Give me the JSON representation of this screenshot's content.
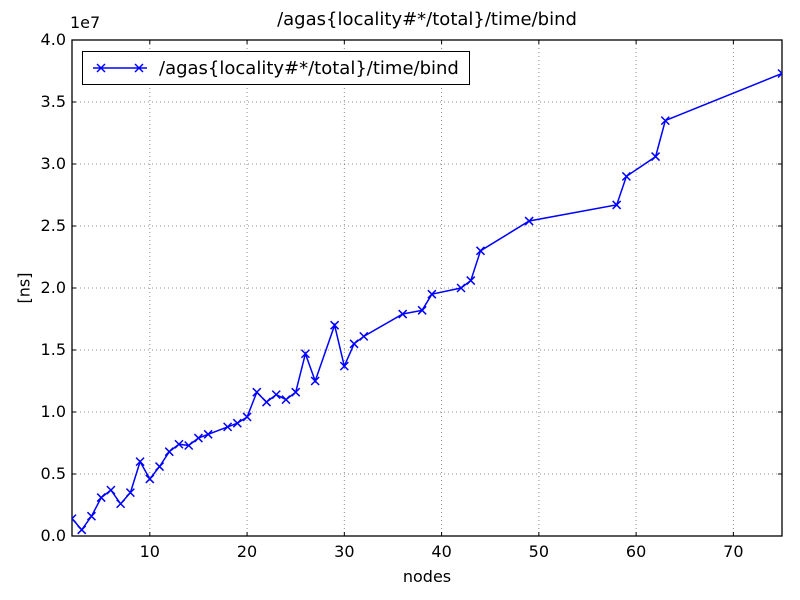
{
  "chart_data": {
    "type": "line",
    "title": "/agas{locality#*/total}/time/bind",
    "xlabel": "nodes",
    "ylabel": "[ns]",
    "y_offset_label": "1e7",
    "legend": [
      "/agas{locality#*/total}/time/bind"
    ],
    "legend_position": "upper left",
    "line_color": "#0000ff",
    "marker": "x",
    "grid": true,
    "grid_style": "dotted",
    "background": "#ffffff",
    "xlim": [
      2,
      75
    ],
    "ylim": [
      0,
      40000000
    ],
    "x_ticks": [
      10,
      20,
      30,
      40,
      50,
      60,
      70
    ],
    "y_tick_values": [
      0,
      5000000,
      10000000,
      15000000,
      20000000,
      25000000,
      30000000,
      35000000,
      40000000
    ],
    "y_tick_labels": [
      "0.0",
      "0.5",
      "1.0",
      "1.5",
      "2.0",
      "2.5",
      "3.0",
      "3.5",
      "4.0"
    ],
    "x": [
      2,
      3,
      4,
      5,
      6,
      7,
      8,
      9,
      10,
      11,
      12,
      13,
      14,
      15,
      16,
      18,
      19,
      20,
      21,
      22,
      23,
      24,
      25,
      26,
      27,
      29,
      30,
      31,
      32,
      36,
      38,
      39,
      42,
      43,
      44,
      49,
      58,
      59,
      62,
      63,
      75
    ],
    "y": [
      1400000,
      500000,
      1600000,
      3100000,
      3700000,
      2600000,
      3500000,
      6000000,
      4600000,
      5600000,
      6800000,
      7400000,
      7300000,
      7900000,
      8200000,
      8800000,
      9100000,
      9600000,
      11600000,
      10800000,
      11400000,
      11000000,
      11600000,
      14700000,
      12500000,
      17000000,
      13700000,
      15500000,
      16100000,
      17900000,
      18200000,
      19500000,
      20000000,
      20600000,
      23000000,
      25400000,
      26700000,
      29000000,
      30600000,
      33500000,
      37300000
    ]
  }
}
